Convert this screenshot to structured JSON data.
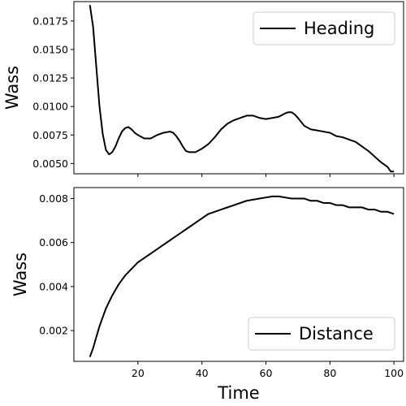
{
  "chart_data": [
    {
      "type": "line",
      "ylabel": "Wass",
      "xlabel": "",
      "xlim": [
        0,
        103
      ],
      "ylim": [
        0.0041,
        0.0192
      ],
      "xticks": [
        20,
        40,
        60,
        80,
        100
      ],
      "show_xtick_labels": false,
      "yticks": [
        0.005,
        0.0075,
        0.01,
        0.0125,
        0.015,
        0.0175
      ],
      "ytick_labels": [
        "0.0050",
        "0.0075",
        "0.0100",
        "0.0125",
        "0.0150",
        "0.0175"
      ],
      "grid": false,
      "legend_position": "top-right",
      "series": [
        {
          "name": "Heading",
          "color": "#000000",
          "x": [
            5,
            6,
            7,
            8,
            9,
            10,
            11,
            12,
            13,
            14,
            15,
            16,
            17,
            18,
            19,
            20,
            22,
            24,
            26,
            28,
            30,
            31,
            32,
            33,
            34,
            35,
            36,
            37,
            38,
            40,
            42,
            44,
            46,
            48,
            50,
            52,
            54,
            56,
            58,
            60,
            62,
            64,
            66,
            67,
            68,
            69,
            70,
            72,
            74,
            76,
            78,
            80,
            82,
            84,
            86,
            88,
            90,
            92,
            94,
            96,
            98,
            99,
            100
          ],
          "y": [
            0.0189,
            0.017,
            0.0135,
            0.01,
            0.0076,
            0.0062,
            0.0058,
            0.006,
            0.0065,
            0.0072,
            0.0078,
            0.0081,
            0.0082,
            0.008,
            0.0077,
            0.0075,
            0.0072,
            0.0072,
            0.0075,
            0.0077,
            0.0078,
            0.0077,
            0.0074,
            0.007,
            0.0065,
            0.0061,
            0.006,
            0.006,
            0.006,
            0.0063,
            0.0067,
            0.0073,
            0.008,
            0.0085,
            0.0088,
            0.009,
            0.0092,
            0.0092,
            0.009,
            0.0089,
            0.009,
            0.0091,
            0.0094,
            0.0095,
            0.0095,
            0.0093,
            0.009,
            0.0083,
            0.008,
            0.0079,
            0.0078,
            0.0077,
            0.0074,
            0.0073,
            0.0071,
            0.0069,
            0.0065,
            0.0061,
            0.0056,
            0.0051,
            0.0047,
            0.0043,
            0.0043
          ]
        }
      ]
    },
    {
      "type": "line",
      "ylabel": "Wass",
      "xlabel": "Time",
      "xlim": [
        0,
        103
      ],
      "ylim": [
        0.0006,
        0.0085
      ],
      "xticks": [
        20,
        40,
        60,
        80,
        100
      ],
      "xtick_labels": [
        "20",
        "40",
        "60",
        "80",
        "100"
      ],
      "yticks": [
        0.002,
        0.004,
        0.006,
        0.008
      ],
      "ytick_labels": [
        "0.002",
        "0.004",
        "0.006",
        "0.008"
      ],
      "grid": false,
      "legend_position": "bottom-right",
      "series": [
        {
          "name": "Distance",
          "color": "#000000",
          "x": [
            5,
            6,
            7,
            8,
            9,
            10,
            12,
            14,
            16,
            18,
            20,
            22,
            24,
            26,
            28,
            30,
            32,
            34,
            36,
            38,
            40,
            42,
            44,
            46,
            48,
            50,
            52,
            54,
            56,
            58,
            60,
            62,
            64,
            66,
            68,
            70,
            72,
            74,
            76,
            78,
            80,
            82,
            84,
            86,
            88,
            90,
            92,
            94,
            96,
            98,
            100
          ],
          "y": [
            0.0008,
            0.0012,
            0.0017,
            0.0022,
            0.0026,
            0.003,
            0.0036,
            0.0041,
            0.0045,
            0.0048,
            0.0051,
            0.0053,
            0.0055,
            0.0057,
            0.0059,
            0.0061,
            0.0063,
            0.0065,
            0.0067,
            0.0069,
            0.0071,
            0.0073,
            0.0074,
            0.0075,
            0.0076,
            0.0077,
            0.0078,
            0.0079,
            0.00795,
            0.008,
            0.00805,
            0.0081,
            0.0081,
            0.00805,
            0.008,
            0.008,
            0.008,
            0.0079,
            0.0079,
            0.0078,
            0.0078,
            0.0077,
            0.0077,
            0.0076,
            0.0076,
            0.0076,
            0.0075,
            0.0075,
            0.0074,
            0.0074,
            0.0073
          ]
        }
      ]
    }
  ]
}
